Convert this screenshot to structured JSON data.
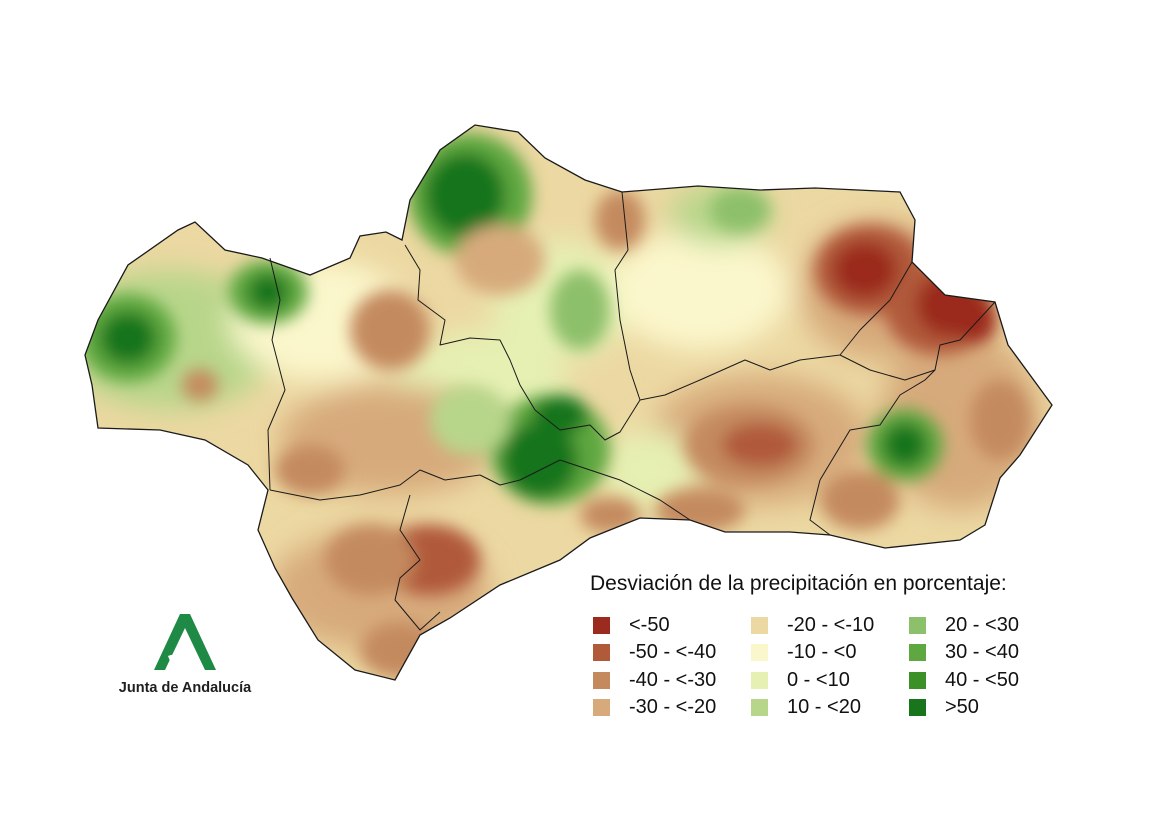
{
  "legend": {
    "title": "Desviación de la precipitación en porcentaje:",
    "classes": [
      {
        "label": "<-50",
        "color": "#9b2a1f"
      },
      {
        "label": "-50 - <-40",
        "color": "#b15a3a"
      },
      {
        "label": "-40 - <-30",
        "color": "#c48a5e"
      },
      {
        "label": "-30 - <-20",
        "color": "#d7aa7c"
      },
      {
        "label": "-20 - <-10",
        "color": "#ecd8a2"
      },
      {
        "label": "-10 - <0",
        "color": "#fbf7cc"
      },
      {
        "label": "0 - <10",
        "color": "#e6f0b3"
      },
      {
        "label": "10 - <20",
        "color": "#b8d68a"
      },
      {
        "label": "20 - <30",
        "color": "#8dc06a"
      },
      {
        "label": "30 - <40",
        "color": "#5ea741"
      },
      {
        "label": "40 - <50",
        "color": "#3b9128"
      },
      {
        "label": ">50",
        "color": "#18751c"
      }
    ]
  },
  "logo": {
    "name": "Junta de Andalucía",
    "color": "#1f8a46"
  }
}
